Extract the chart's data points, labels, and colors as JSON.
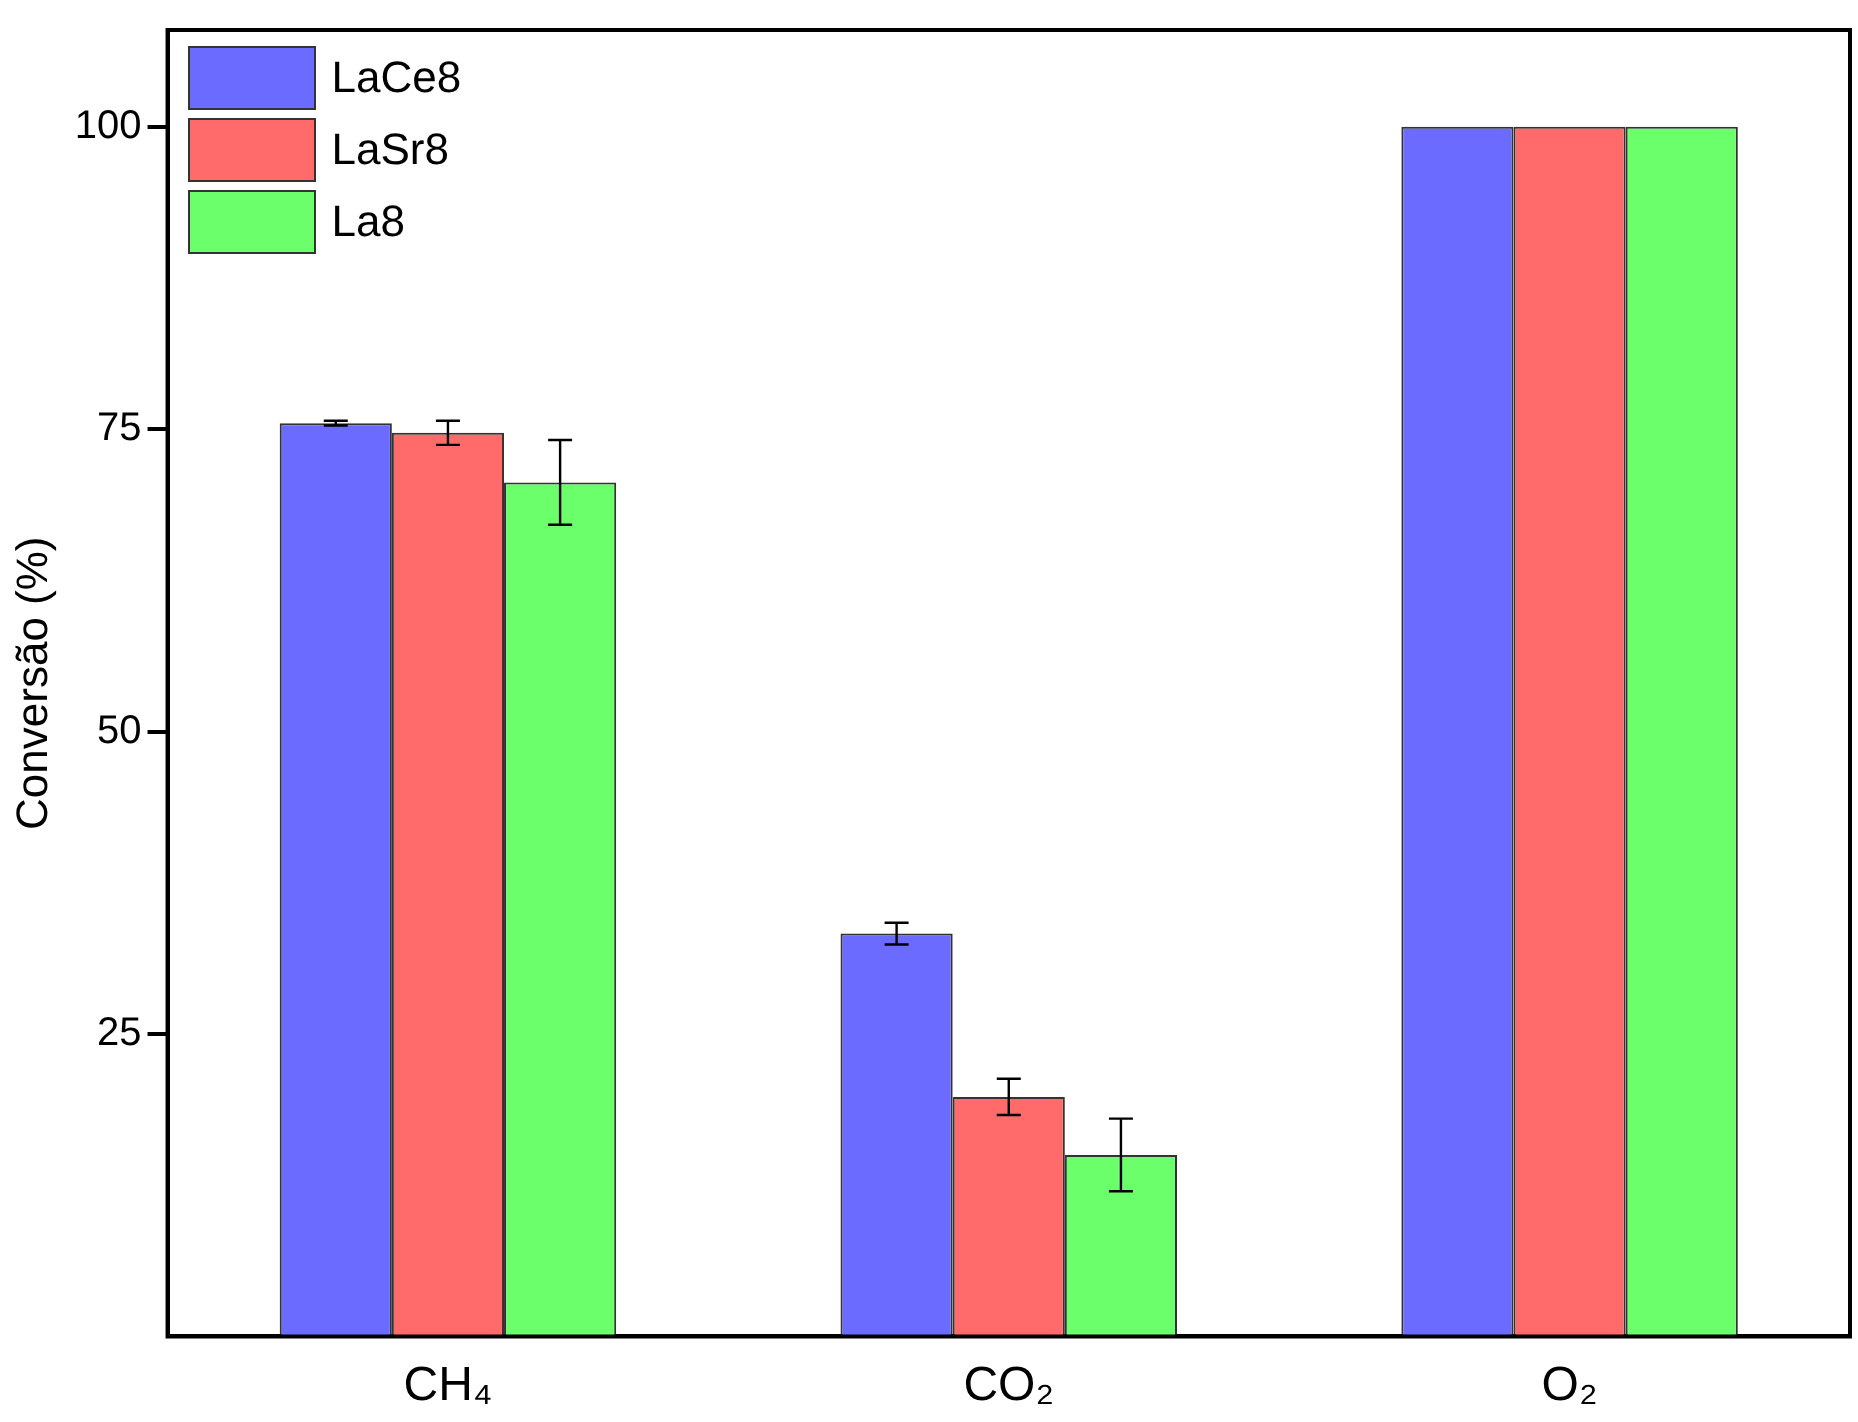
{
  "chart_data": {
    "type": "bar",
    "ylabel": "Conversão (%)",
    "categories": [
      "CH₄",
      "CO₂",
      "O₂"
    ],
    "series": [
      {
        "name": "LaCe8",
        "color": "#6b6bff",
        "values": [
          75.5,
          33.3,
          100
        ],
        "errors": [
          0.2,
          0.9,
          null
        ]
      },
      {
        "name": "LaSr8",
        "color": "#ff6b6b",
        "values": [
          74.7,
          19.8,
          100
        ],
        "errors": [
          1.0,
          1.5,
          null
        ]
      },
      {
        "name": "La8",
        "color": "#6bff6b",
        "values": [
          70.6,
          15.0,
          100
        ],
        "errors": [
          3.5,
          3.0,
          null
        ]
      }
    ],
    "ylim": [
      0,
      108
    ],
    "yticks": [
      25,
      50,
      75,
      100
    ],
    "grid": false,
    "legend": "top left"
  }
}
